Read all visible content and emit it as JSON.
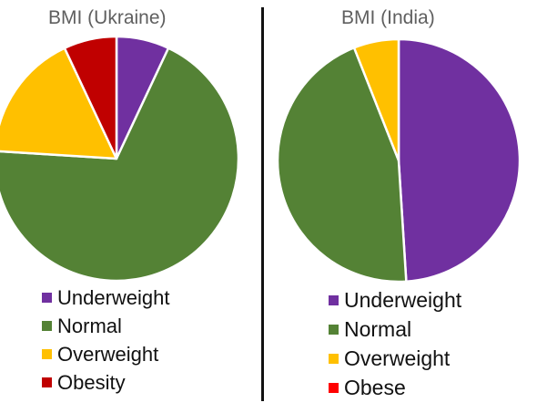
{
  "chart_data": [
    {
      "type": "pie",
      "title": "BMI (Ukraine)",
      "categories": [
        "Underweight",
        "Normal",
        "Overweight",
        "Obesity"
      ],
      "values": [
        7,
        69,
        17,
        7
      ],
      "unit": "%",
      "colors": [
        "#7030a0",
        "#548235",
        "#ffc000",
        "#c00000"
      ],
      "legend_position": "bottom"
    },
    {
      "type": "pie",
      "title": "BMI (India)",
      "categories": [
        "Underweight",
        "Normal",
        "Overweight",
        "Obese"
      ],
      "values": [
        49,
        45,
        6,
        0
      ],
      "unit": "%",
      "colors": [
        "#7030a0",
        "#548235",
        "#ffc000",
        "#ff0000"
      ],
      "legend_position": "bottom"
    }
  ]
}
